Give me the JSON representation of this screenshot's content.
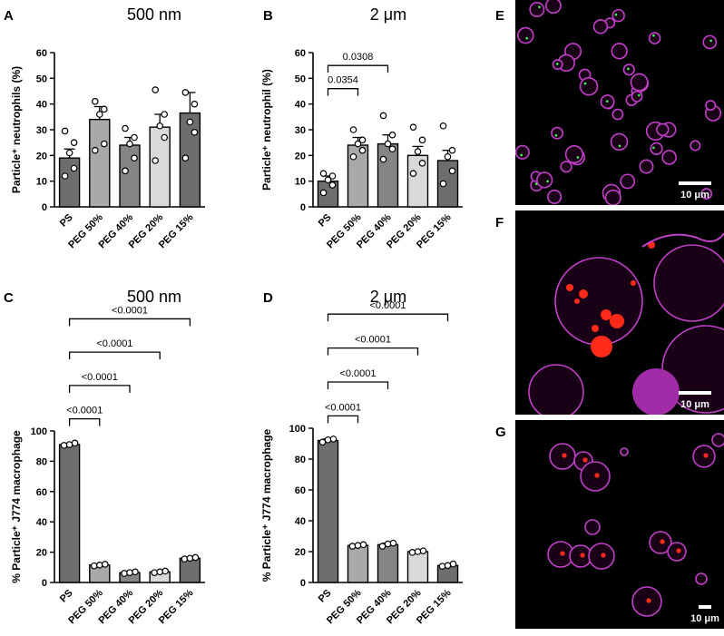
{
  "chart_data": [
    {
      "panel": "A",
      "type": "bar",
      "title": "500 nm",
      "ylabel": "Particle⁺ neutrophils (%)",
      "ylim": [
        0,
        60
      ],
      "yticks": [
        "0",
        "10",
        "20",
        "30",
        "40",
        "50",
        "60"
      ],
      "categories": [
        "PS",
        "PEG 50%",
        "PEG 40%",
        "PEG 20%",
        "PEG 15%"
      ],
      "values": [
        19,
        34,
        24,
        31,
        36.5
      ],
      "errors": [
        3.5,
        5,
        3,
        5,
        8
      ],
      "points": [
        [
          12,
          15,
          21,
          25,
          29.5
        ],
        [
          22,
          24.5,
          36,
          38,
          41
        ],
        [
          14,
          19,
          24.5,
          27,
          30.5
        ],
        [
          18,
          27,
          31.5,
          36,
          45.5
        ],
        [
          19,
          29,
          33,
          40,
          44.5
        ]
      ],
      "colors": [
        "#6e6e6e",
        "#a9a9a9",
        "#858585",
        "#d9d9d9",
        "#6e6e6e"
      ],
      "comparisons": []
    },
    {
      "panel": "B",
      "type": "bar",
      "title": "2 μm",
      "ylabel": "Particle⁺ neutrophil (%)",
      "ylim": [
        0,
        60
      ],
      "yticks": [
        "0",
        "10",
        "20",
        "30",
        "40",
        "50",
        "60"
      ],
      "categories": [
        "PS",
        "PEG 50%",
        "PEG 40%",
        "PEG 20%",
        "PEG 15%"
      ],
      "values": [
        10,
        24,
        24.5,
        20,
        18
      ],
      "errors": [
        2,
        3,
        3.5,
        3.5,
        4
      ],
      "points": [
        [
          5.5,
          8.5,
          10.5,
          12,
          13
        ],
        [
          19.5,
          22,
          24.5,
          26,
          30
        ],
        [
          18.5,
          22.5,
          24.5,
          28,
          35.5
        ],
        [
          13,
          17,
          21.5,
          26,
          31
        ],
        [
          9,
          14,
          19.5,
          22,
          31.5
        ]
      ],
      "colors": [
        "#6e6e6e",
        "#a9a9a9",
        "#858585",
        "#d9d9d9",
        "#6e6e6e"
      ],
      "comparisons": [
        {
          "from": 0,
          "to": 1,
          "label": "0.0354",
          "y": 46
        },
        {
          "from": 0,
          "to": 2,
          "label": "0.0308",
          "y": 55
        }
      ]
    },
    {
      "panel": "C",
      "type": "bar",
      "title": "500 nm",
      "ylabel": "% Particle⁺ J774 macrophage",
      "ylim": [
        0,
        100
      ],
      "yticks": [
        "0",
        "20",
        "40",
        "60",
        "80",
        "100"
      ],
      "categories": [
        "PS",
        "PEG 50%",
        "PEG 40%",
        "PEG 20%",
        "PEG 15%"
      ],
      "values": [
        91,
        11.5,
        6.5,
        7,
        16
      ],
      "errors": [
        0.5,
        0.5,
        0.5,
        0.5,
        0.5
      ],
      "points": [
        [
          90.5,
          91,
          92
        ],
        [
          11,
          11.5,
          12
        ],
        [
          6,
          6.5,
          7
        ],
        [
          6.5,
          7,
          7.5
        ],
        [
          15.5,
          16,
          16.5
        ]
      ],
      "colors": [
        "#6e6e6e",
        "#a9a9a9",
        "#858585",
        "#d9d9d9",
        "#6e6e6e"
      ],
      "comparisons": [
        {
          "from": 0,
          "to": 1,
          "label": "<0.0001",
          "y": 108
        },
        {
          "from": 0,
          "to": 2,
          "label": "<0.0001",
          "y": 130
        },
        {
          "from": 0,
          "to": 3,
          "label": "<0.0001",
          "y": 152
        },
        {
          "from": 0,
          "to": 4,
          "label": "<0.0001",
          "y": 174
        }
      ]
    },
    {
      "panel": "D",
      "type": "bar",
      "title": "2 μm",
      "ylabel": "% Particle⁺ J774 macrophage",
      "ylim": [
        0,
        100
      ],
      "yticks": [
        "0",
        "20",
        "40",
        "60",
        "80",
        "100"
      ],
      "categories": [
        "PS",
        "PEG 50%",
        "PEG 40%",
        "PEG 20%",
        "PEG 15%"
      ],
      "values": [
        92,
        24,
        24.5,
        20,
        11
      ],
      "errors": [
        1,
        0.5,
        1,
        0.5,
        0.5
      ],
      "points": [
        [
          91,
          92.5,
          93
        ],
        [
          23.5,
          24,
          24.5
        ],
        [
          23.5,
          25,
          25.5
        ],
        [
          19.5,
          20,
          20.5
        ],
        [
          10.5,
          11,
          12
        ]
      ],
      "colors": [
        "#6e6e6e",
        "#a9a9a9",
        "#858585",
        "#d9d9d9",
        "#6e6e6e"
      ],
      "comparisons": [
        {
          "from": 0,
          "to": 1,
          "label": "<0.0001",
          "y": 108
        },
        {
          "from": 0,
          "to": 2,
          "label": "<0.0001",
          "y": 130
        },
        {
          "from": 0,
          "to": 3,
          "label": "<0.0001",
          "y": 152
        },
        {
          "from": 0,
          "to": 4,
          "label": "<0.0001",
          "y": 174
        }
      ]
    }
  ],
  "micrographs": [
    {
      "panel": "E",
      "scale_label": "10 μm",
      "particle_color": "#3cff5a"
    },
    {
      "panel": "F",
      "scale_label": "10 μm",
      "particle_color": "#ff2a1a"
    },
    {
      "panel": "G",
      "scale_label": "10 μm",
      "particle_color": "#ff2a1a"
    }
  ],
  "colors": {
    "membrane": "#c040c8",
    "background": "#000000"
  }
}
